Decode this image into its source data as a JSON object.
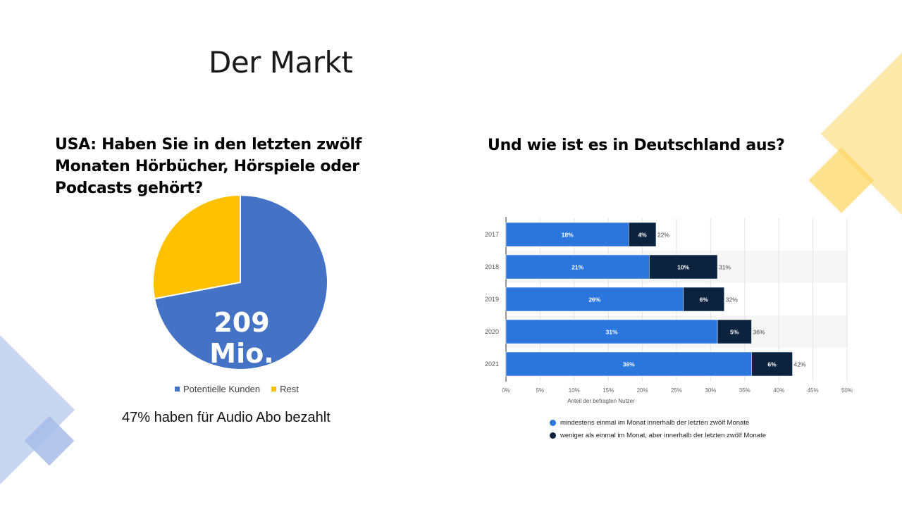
{
  "slide": {
    "title": "Der Markt"
  },
  "usa": {
    "question": "USA: Haben Sie in den letzten zwölf Monaten Hörbücher, Hörspiele oder Podcasts gehört?",
    "center_label": "209 Mio.",
    "note": "47% haben für Audio Abo bezahlt"
  },
  "germany": {
    "question": "Und wie ist es in Deutschland aus?"
  },
  "colors": {
    "pie_blue": "#4472c4",
    "pie_yellow": "#ffc000",
    "bar_light": "#2a76dd",
    "bar_dark": "#0c2340",
    "deco_yellow": "#fde49a",
    "deco_blue": "#c3d2f0"
  },
  "chart_data": [
    {
      "type": "pie",
      "slices": [
        {
          "label": "Potentielle Kunden",
          "value": 72,
          "color": "#4472c4"
        },
        {
          "label": "Rest",
          "value": 28,
          "color": "#ffc000"
        }
      ],
      "legend_position": "bottom"
    },
    {
      "type": "bar",
      "orientation": "horizontal",
      "stacked": true,
      "categories": [
        "2017",
        "2018",
        "2019",
        "2020",
        "2021"
      ],
      "series": [
        {
          "name": "mindestens einmal im Monat innerhalb der letzten zwölf Monate",
          "values": [
            18,
            21,
            26,
            31,
            36
          ],
          "color": "#2a76dd"
        },
        {
          "name": "weniger als einmal im Monat, aber innerhalb der letzten zwölf Monate",
          "values": [
            4,
            10,
            6,
            5,
            6
          ],
          "color": "#0c2340"
        }
      ],
      "totals": [
        "22%",
        "31%",
        "32%",
        "36%",
        "42%"
      ],
      "segment_labels": [
        [
          "18%",
          "4%"
        ],
        [
          "21%",
          "10%"
        ],
        [
          "26%",
          "6%"
        ],
        [
          "31%",
          "5%"
        ],
        [
          "36%",
          "6%"
        ]
      ],
      "xlabel": "Anteil der befragten Nutzer",
      "xticks": [
        "0%",
        "5%",
        "10%",
        "15%",
        "20%",
        "25%",
        "30%",
        "35%",
        "40%",
        "45%",
        "50%"
      ],
      "xlim": [
        0,
        50
      ],
      "grid": true,
      "legend_position": "bottom"
    }
  ]
}
